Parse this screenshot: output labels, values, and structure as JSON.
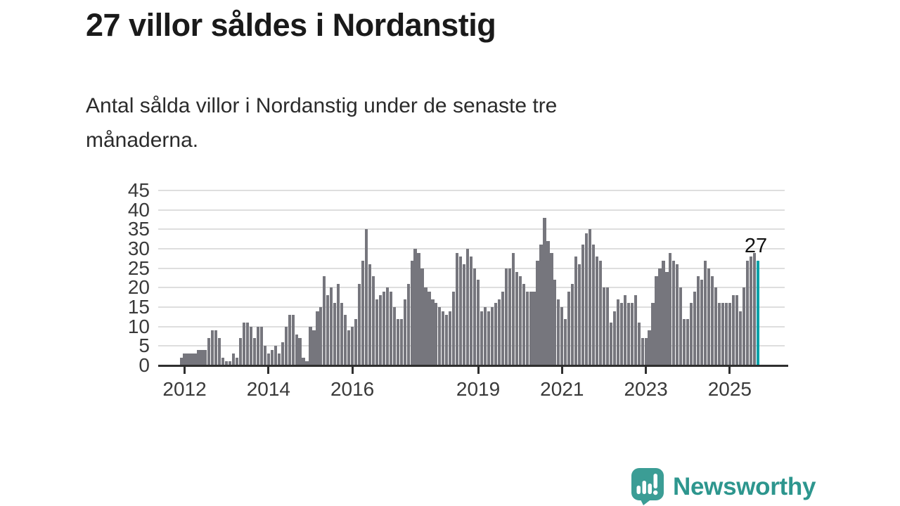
{
  "header": {
    "title": "27 villor såldes i Nordanstig",
    "subtitle_lines": [
      "Antal sålda villor i Nordanstig under de senaste tre",
      "månaderna."
    ]
  },
  "chart_data": {
    "type": "bar",
    "title": "27 villor såldes i Nordanstig",
    "subtitle": "Antal sålda villor i Nordanstig under de senaste tre månaderna.",
    "x_unit": "month",
    "x_start": "2011-12",
    "values": [
      2,
      3,
      3,
      3,
      3,
      4,
      4,
      4,
      7,
      9,
      9,
      7,
      2,
      1,
      1,
      3,
      2,
      7,
      11,
      11,
      10,
      7,
      10,
      10,
      5,
      3,
      4,
      5,
      3,
      6,
      10,
      13,
      13,
      8,
      7,
      2,
      1,
      10,
      9,
      14,
      15,
      23,
      18,
      20,
      16,
      21,
      16,
      13,
      9,
      10,
      12,
      21,
      27,
      35,
      26,
      23,
      17,
      18,
      19,
      20,
      19,
      15,
      12,
      12,
      17,
      21,
      27,
      30,
      29,
      25,
      20,
      19,
      17,
      16,
      15,
      14,
      13,
      14,
      19,
      29,
      28,
      26,
      30,
      28,
      25,
      22,
      14,
      15,
      14,
      15,
      16,
      17,
      19,
      25,
      25,
      29,
      24,
      23,
      21,
      19,
      19,
      19,
      27,
      31,
      38,
      32,
      29,
      22,
      17,
      15,
      12,
      19,
      21,
      28,
      26,
      31,
      34,
      35,
      31,
      28,
      27,
      20,
      20,
      11,
      14,
      17,
      16,
      18,
      16,
      16,
      18,
      11,
      7,
      7,
      9,
      16,
      23,
      25,
      27,
      24,
      29,
      27,
      26,
      20,
      12,
      12,
      16,
      19,
      23,
      22,
      27,
      25,
      23,
      20,
      16,
      16,
      16,
      16,
      18,
      18,
      14,
      20,
      27,
      28,
      29,
      27
    ],
    "highlight_index": 165,
    "highlight_value": 27,
    "annotation": {
      "text": "27",
      "index": 165
    },
    "bar_color": "#76767d",
    "highlight_color": "#00a2a8",
    "grid_color": "#dedede",
    "axis_color": "#2f2f2f",
    "yticks": [
      0,
      5,
      10,
      15,
      20,
      25,
      30,
      35,
      40,
      45
    ],
    "ylim": [
      0,
      45
    ],
    "xticks": [
      {
        "label": "2012",
        "index": 1
      },
      {
        "label": "2014",
        "index": 25
      },
      {
        "label": "2016",
        "index": 49
      },
      {
        "label": "2019",
        "index": 85
      },
      {
        "label": "2021",
        "index": 109
      },
      {
        "label": "2023",
        "index": 133
      },
      {
        "label": "2025",
        "index": 157
      }
    ],
    "grid": true,
    "legend": false
  },
  "footer": {
    "brand": "Newsworthy",
    "logo_icon": "newsworthy-bubble-chart-icon",
    "brand_text_color": "#2d968e",
    "icon_color": "#3b9d95"
  }
}
